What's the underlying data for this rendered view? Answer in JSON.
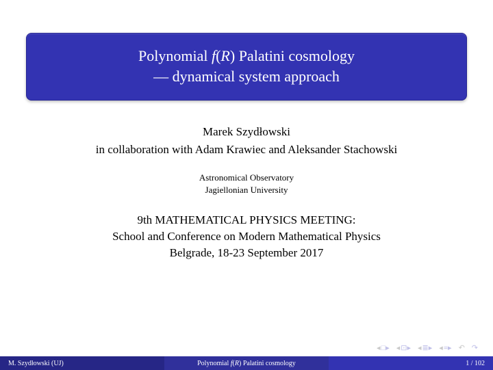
{
  "title": {
    "line1_pre": "Polynomial ",
    "line1_fn": "f",
    "line1_paren_open": "(",
    "line1_R": "R",
    "line1_paren_close": ")",
    "line1_post": " Palatini cosmology",
    "line2": "— dynamical system approach"
  },
  "author_main": "Marek Szydłowski",
  "author_collab": "in collaboration with Adam Krawiec and Aleksander Stachowski",
  "affil_line1": "Astronomical Observatory",
  "affil_line2": "Jagiellonian University",
  "meeting_line1": "9th MATHEMATICAL PHYSICS MEETING:",
  "meeting_line2": "School and Conference on Modern Mathematical Physics",
  "meeting_line3": "Belgrade, 18-23 September 2017",
  "footer": {
    "left": "M. Szydłowski  (UJ)",
    "mid_pre": "Polynomial ",
    "mid_fn": "f",
    "mid_paren_open": "(",
    "mid_R": "R",
    "mid_paren_close": ")",
    "mid_post": " Palatini cosmology",
    "right": "1 / 102"
  },
  "colors": {
    "title_bg": "#3333b2",
    "footer_left": "#262686",
    "footer_mid": "#30309b",
    "footer_right": "#3333b2",
    "nav_icon": "#c9c9c9",
    "nav_accent": "#bfbfe8",
    "text": "#000000",
    "background": "#ffffff"
  },
  "nav": {
    "first": "◂◂",
    "prev_section": "◂□",
    "prev": "◂≡",
    "next": "≡▸",
    "undo": "↶",
    "redo": "↷"
  }
}
